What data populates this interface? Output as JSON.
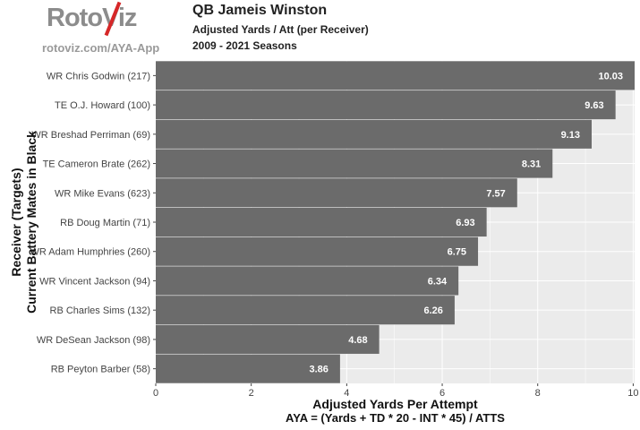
{
  "header": {
    "logo_text": "RotoViz",
    "site_url": "rotoviz.com/AYA-App",
    "title": "QB Jameis Winston",
    "subtitle": "Adjusted Yards / Att (per Receiver)",
    "seasons": "2009 - 2021 Seasons"
  },
  "colors": {
    "bar": "#6b6b6b",
    "panel": "#ebebeb",
    "grid": "#ffffff",
    "logo_accent": "#d62728"
  },
  "chart_data": {
    "type": "bar",
    "orientation": "horizontal",
    "title": "QB Jameis Winston",
    "subtitle": "Adjusted Yards / Att (per Receiver)",
    "xlabel": "Adjusted Yards Per Attempt",
    "xlabel_formula": "AYA = (Yards + TD * 20 - INT * 45) / ATTS",
    "ylabel": "Receiver (Targets)",
    "ylabel_line2": "Current Battery Mates in Black",
    "xlim": [
      0,
      10.03
    ],
    "xticks": [
      0,
      2,
      4,
      6,
      8,
      10
    ],
    "categories": [
      "WR Chris Godwin (217)",
      "TE O.J. Howard (100)",
      "WR Breshad Perriman (69)",
      "TE Cameron Brate (262)",
      "WR Mike Evans (623)",
      "RB Doug Martin (71)",
      "WR Adam Humphries (260)",
      "WR Vincent Jackson (94)",
      "RB Charles Sims (132)",
      "WR DeSean Jackson (98)",
      "RB Peyton Barber (58)"
    ],
    "values": [
      10.03,
      9.63,
      9.13,
      8.31,
      7.57,
      6.93,
      6.75,
      6.34,
      6.26,
      4.68,
      3.86
    ],
    "value_labels": [
      "10.03",
      "9.63",
      "9.13",
      "8.31",
      "7.57",
      "6.93",
      "6.75",
      "6.34",
      "6.26",
      "4.68",
      "3.86"
    ]
  }
}
